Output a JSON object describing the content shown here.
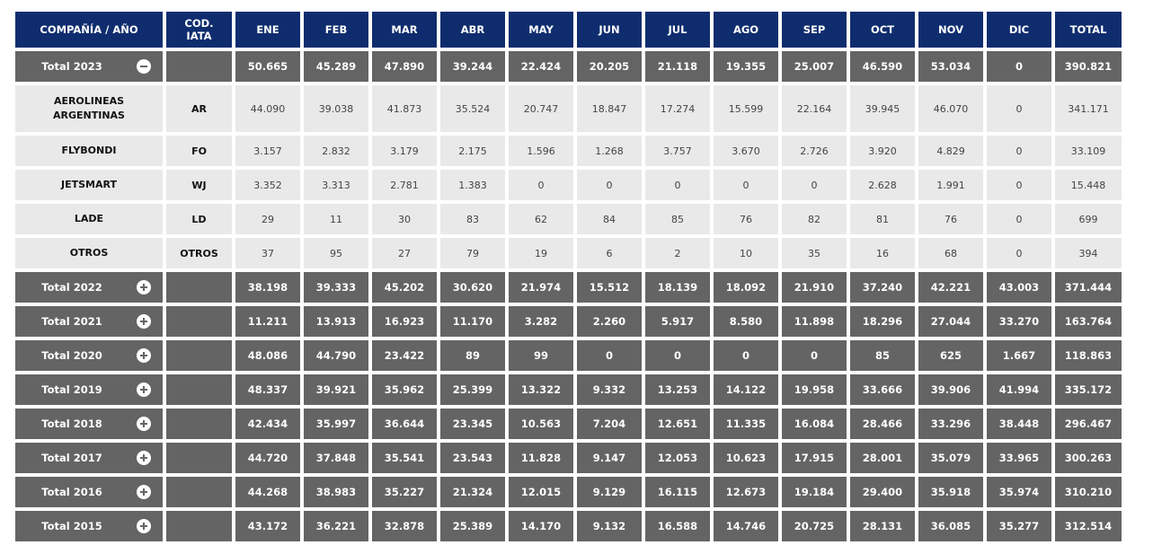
{
  "headers": [
    "COMPAÑÍA / AÑO",
    "COD. IATA",
    "ENE",
    "FEB",
    "MAR",
    "ABR",
    "MAY",
    "JUN",
    "JUL",
    "AGO",
    "SEP",
    "OCT",
    "NOV",
    "DIC",
    "TOTAL"
  ],
  "total_2023": {
    "label": "Total 2023",
    "code": "",
    "values": [
      "50.665",
      "45.289",
      "47.890",
      "39.244",
      "22.424",
      "20.205",
      "21.118",
      "19.355",
      "25.007",
      "46.590",
      "53.034",
      "0",
      "390.821"
    ]
  },
  "airlines": [
    {
      "name": "AEROLINEAS ARGENTINAS",
      "code": "AR",
      "values": [
        "44.090",
        "39.038",
        "41.873",
        "35.524",
        "20.747",
        "18.847",
        "17.274",
        "15.599",
        "22.164",
        "39.945",
        "46.070",
        "0",
        "341.171"
      ]
    },
    {
      "name": "FLYBONDI",
      "code": "FO",
      "values": [
        "3.157",
        "2.832",
        "3.179",
        "2.175",
        "1.596",
        "1.268",
        "3.757",
        "3.670",
        "2.726",
        "3.920",
        "4.829",
        "0",
        "33.109"
      ]
    },
    {
      "name": "JETSMART",
      "code": "WJ",
      "values": [
        "3.352",
        "3.313",
        "2.781",
        "1.383",
        "0",
        "0",
        "0",
        "0",
        "0",
        "2.628",
        "1.991",
        "0",
        "15.448"
      ]
    },
    {
      "name": "LADE",
      "code": "LD",
      "values": [
        "29",
        "11",
        "30",
        "83",
        "62",
        "84",
        "85",
        "76",
        "82",
        "81",
        "76",
        "0",
        "699"
      ]
    },
    {
      "name": "OTROS",
      "code": "OTROS",
      "values": [
        "37",
        "95",
        "27",
        "79",
        "19",
        "6",
        "2",
        "10",
        "35",
        "16",
        "68",
        "0",
        "394"
      ]
    }
  ],
  "totals": [
    {
      "label": "Total 2022",
      "values": [
        "38.198",
        "39.333",
        "45.202",
        "30.620",
        "21.974",
        "15.512",
        "18.139",
        "18.092",
        "21.910",
        "37.240",
        "42.221",
        "43.003",
        "371.444"
      ]
    },
    {
      "label": "Total 2021",
      "values": [
        "11.211",
        "13.913",
        "16.923",
        "11.170",
        "3.282",
        "2.260",
        "5.917",
        "8.580",
        "11.898",
        "18.296",
        "27.044",
        "33.270",
        "163.764"
      ]
    },
    {
      "label": "Total 2020",
      "values": [
        "48.086",
        "44.790",
        "23.422",
        "89",
        "99",
        "0",
        "0",
        "0",
        "0",
        "85",
        "625",
        "1.667",
        "118.863"
      ]
    },
    {
      "label": "Total 2019",
      "values": [
        "48.337",
        "39.921",
        "35.962",
        "25.399",
        "13.322",
        "9.332",
        "13.253",
        "14.122",
        "19.958",
        "33.666",
        "39.906",
        "41.994",
        "335.172"
      ]
    },
    {
      "label": "Total 2018",
      "values": [
        "42.434",
        "35.997",
        "36.644",
        "23.345",
        "10.563",
        "7.204",
        "12.651",
        "11.335",
        "16.084",
        "28.466",
        "33.296",
        "38.448",
        "296.467"
      ]
    },
    {
      "label": "Total 2017",
      "values": [
        "44.720",
        "37.848",
        "35.541",
        "23.543",
        "11.828",
        "9.147",
        "12.053",
        "10.623",
        "17.915",
        "28.001",
        "35.079",
        "33.965",
        "300.263"
      ]
    },
    {
      "label": "Total 2016",
      "values": [
        "44.268",
        "38.983",
        "35.227",
        "21.324",
        "12.015",
        "9.129",
        "16.115",
        "12.673",
        "19.184",
        "29.400",
        "35.918",
        "35.974",
        "310.210"
      ]
    },
    {
      "label": "Total 2015",
      "values": [
        "43.172",
        "36.221",
        "32.878",
        "25.389",
        "14.170",
        "9.132",
        "16.588",
        "14.746",
        "20.725",
        "28.131",
        "36.085",
        "35.277",
        "312.514"
      ]
    }
  ],
  "colors": {
    "header_bg": "#0f2d6e",
    "total_row_bg": "#646464",
    "detail_row_bg": "#e9e9e9"
  }
}
